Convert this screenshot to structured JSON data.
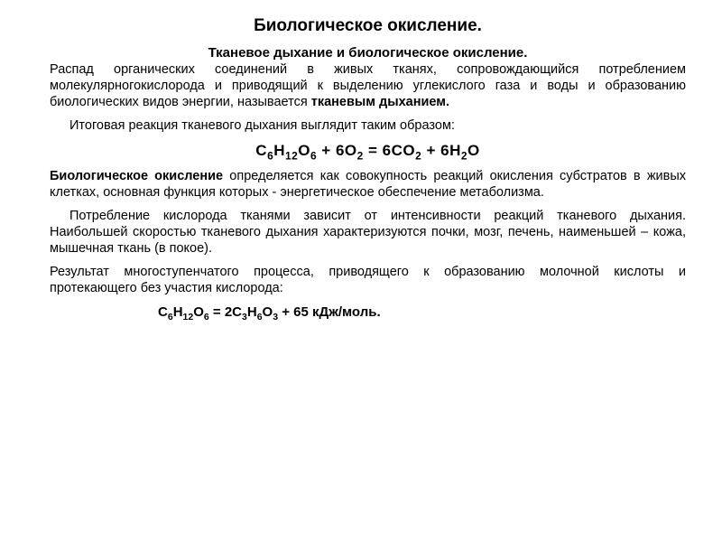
{
  "title": "Биологическое окисление.",
  "subtitle": "Тканевое дыхание и биологическое окисление.",
  "p1_a": "Распад органических соединений в живых тканях, сопровождающийся потреблением молекулярногокислорода и приводящий к выделению углекислого газа и воды и образованию биологических видов энергии, называется ",
  "p1_b": "тканевым дыханием.",
  "p2": "Итоговая реакция тканевого дыхания выглядит таким образом:",
  "eq1_parts": {
    "a": "C",
    "b": "6",
    "c": "H",
    "d": "12",
    "e": "O",
    "f": "6",
    "g": " + 6O",
    "h": "2",
    "i": " = 6CO",
    "j": "2",
    "k": " + 6H",
    "l": "2",
    "m": "O"
  },
  "p3_a": "Биологическое окисление",
  "p3_b": " определяется как совокупность реакций окисления субстратов в живых клетках, основная функция которых - энергетическое обеспечение метаболизма.",
  "p4": "Потребление кислорода тканями зависит от интенсивности реакций тканевого дыхания. Наибольшей скоростью тканевого дыхания характеризуются почки, мозг, печень, наименьшей – кожа, мышечная ткань (в покое).",
  "p5": "Результат многоступенчатого процесса, приводящего к образованию молочной кислоты и протекающего без участия кислорода:",
  "eq2_parts": {
    "a": "C",
    "b": "6",
    "c": "H",
    "d": "12",
    "e": "O",
    "f": "6",
    "g": " = 2C",
    "h": "3",
    "i": "H",
    "j": "6",
    "k": "O",
    "l": "3",
    "m": " + 65 кДж/моль."
  },
  "colors": {
    "bg": "#ffffff",
    "text": "#000000"
  },
  "fonts": {
    "title_size": 19,
    "subtitle_size": 15,
    "body_size": 14.5,
    "eq_size": 17
  }
}
